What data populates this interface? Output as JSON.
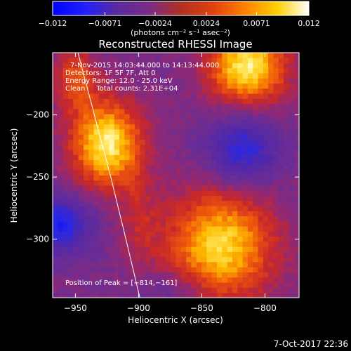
{
  "chart_data": {
    "type": "heatmap",
    "title": "Reconstructed RHESSI Image",
    "xlabel": "Heliocentric X (arcsec)",
    "ylabel": "Heliocentric Y (arcsec)",
    "xlim": [
      -968,
      -773
    ],
    "ylim": [
      -347,
      -150
    ],
    "x_ticks": [
      -950,
      -900,
      -850,
      -800
    ],
    "x_tick_labels": [
      "−950",
      "−900",
      "−850",
      "−800"
    ],
    "y_ticks": [
      -200,
      -250,
      -300
    ],
    "y_tick_labels": [
      "−200",
      "−250",
      "−300"
    ],
    "colorbar": {
      "range": [
        -0.012,
        0.012
      ],
      "ticks": [
        -0.012,
        -0.0071,
        -0.0024,
        0.0024,
        0.0071,
        0.012
      ],
      "tick_labels": [
        "−0.012",
        "−0.0071",
        "−0.0024",
        "0.0024",
        "0.0071",
        "0.012"
      ],
      "label": "(photons cm⁻² s⁻¹ asec⁻²)",
      "colors": [
        "#0000ff",
        "#2020ff",
        "#5a2a9c",
        "#7a2b8a",
        "#b03020",
        "#e04010",
        "#ff8000",
        "#ffd000",
        "#ffffff"
      ]
    },
    "annotations": [
      "7-Nov-2015 14:03:44.000 to 14:13:44.000",
      "Detectors: 1F 5F 7F, Att 0",
      "Energy Range: 12.0 - 25.0 keV",
      "Clean     Total counts: 2.31E+04"
    ],
    "peak_label": "Position of Peak = [−814,−161]",
    "peak": [
      -814,
      -161
    ],
    "limb_points": [
      [
        -948,
        -150
      ],
      [
        -935,
        -200
      ],
      [
        -922,
        -250
      ],
      [
        -910,
        -300
      ],
      [
        -899,
        -347
      ]
    ],
    "sources": [
      {
        "x": -925,
        "y": -223,
        "sx": 20,
        "sy": 25,
        "amp": 0.012
      },
      {
        "x": -835,
        "y": -305,
        "sx": 30,
        "sy": 32,
        "amp": 0.011
      },
      {
        "x": -814,
        "y": -161,
        "sx": 22,
        "sy": 22,
        "amp": 0.012
      },
      {
        "x": -950,
        "y": -170,
        "sx": 12,
        "sy": 18,
        "amp": 0.006
      },
      {
        "x": -900,
        "y": -285,
        "sx": 12,
        "sy": 25,
        "amp": 0.003
      },
      {
        "x": -818,
        "y": -228,
        "sx": 20,
        "sy": 20,
        "amp": -0.0075
      },
      {
        "x": -965,
        "y": -288,
        "sx": 20,
        "sy": 16,
        "amp": -0.0085
      },
      {
        "x": -870,
        "y": -340,
        "sx": 20,
        "sy": 10,
        "amp": -0.003
      }
    ]
  },
  "footer": {
    "date": "7-Oct-2017 22:36"
  }
}
